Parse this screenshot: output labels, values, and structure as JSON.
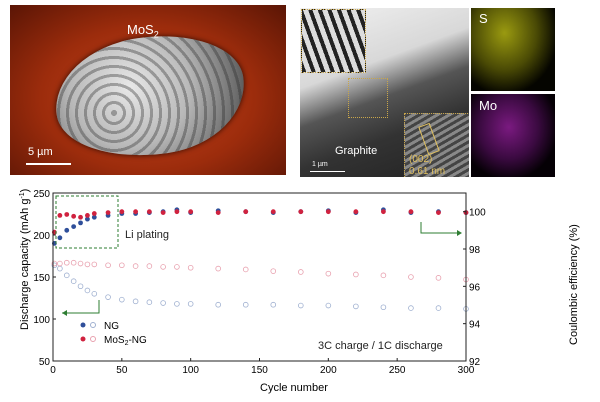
{
  "images": {
    "sem_label_main": "MoS",
    "sem_label_sub": "2",
    "sem_scale": "5 µm",
    "tem_label": "Graphite",
    "tem_scale": "1 µm",
    "tem_lattice_plane": "(002)",
    "tem_lattice_spacing": "0.61 nm",
    "eds_s": "S",
    "eds_mo": "Mo"
  },
  "colors": {
    "ng": "#2f4f9a",
    "ng_open": "#9fb0d0",
    "mos2": "#d0223f",
    "mos2_open": "#e8a0ae",
    "arrow": "#2e7d32"
  },
  "chart_data": {
    "type": "scatter",
    "xlabel": "Cycle number",
    "ylabel": "Discharge capacity (mAh g",
    "ylabel_sup": "-1",
    "ylabel_end": ")",
    "y2label": "Coulombic efficiency (%)",
    "xlim": [
      0,
      300
    ],
    "ylim": [
      50,
      250
    ],
    "y2lim": [
      92,
      101
    ],
    "xticks": [
      0,
      50,
      100,
      150,
      200,
      250,
      300
    ],
    "yticks": [
      50,
      100,
      150,
      200,
      250
    ],
    "y2ticks": [
      92,
      94,
      96,
      98,
      100
    ],
    "annotation_plating": "Li plating",
    "annotation_condition": "3C charge / 1C discharge",
    "legend": {
      "placement": "lower-left",
      "ng": "NG",
      "mos2": "MoS",
      "mos2_sub": "2",
      "mos2_end": "-NG"
    },
    "x": [
      1,
      5,
      10,
      15,
      20,
      25,
      30,
      40,
      50,
      60,
      70,
      80,
      90,
      100,
      120,
      140,
      160,
      180,
      200,
      220,
      240,
      260,
      280,
      300
    ],
    "series": [
      {
        "name": "NG capacity",
        "axis": "left",
        "values": [
          164,
          160,
          152,
          145,
          139,
          134,
          130,
          126,
          123,
          121,
          120,
          119,
          118,
          118,
          117,
          117,
          117,
          116,
          116,
          115,
          114,
          113,
          113,
          112
        ]
      },
      {
        "name": "MoS2-NG capacity",
        "axis": "left",
        "values": [
          166,
          166,
          167,
          167,
          166,
          165,
          165,
          164,
          164,
          163,
          163,
          162,
          162,
          161,
          160,
          159,
          157,
          156,
          154,
          153,
          152,
          150,
          149,
          147
        ]
      },
      {
        "name": "NG coulombic efficiency",
        "axis": "right",
        "values": [
          98.3,
          98.6,
          99.0,
          99.2,
          99.4,
          99.6,
          99.7,
          99.8,
          99.9,
          99.9,
          99.95,
          100,
          100.1,
          99.95,
          100.05,
          100.0,
          99.95,
          100.0,
          100.05,
          99.95,
          100.1,
          99.95,
          100.0,
          99.95
        ]
      },
      {
        "name": "MoS2-NG coulombic efficiency",
        "axis": "right",
        "values": [
          98.9,
          99.8,
          99.85,
          99.75,
          99.7,
          99.8,
          99.9,
          99.95,
          100,
          100,
          100,
          99.95,
          100,
          100,
          99.95,
          100,
          100,
          100,
          100,
          100,
          100,
          100,
          99.95,
          99.95
        ]
      }
    ]
  }
}
